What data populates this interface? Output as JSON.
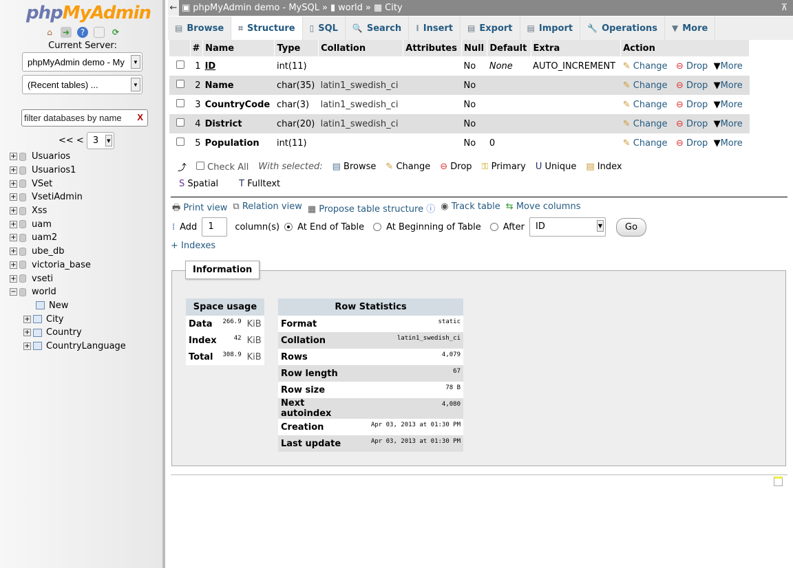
{
  "nav": {
    "logo_php": "php",
    "logo_my": "MyAdmin",
    "current_server_label": "Current Server:",
    "server_select": "phpMyAdmin demo - My",
    "recent_tables": "(Recent tables) ...",
    "filter_placeholder": "filter databases by name",
    "pager_prev": "<< <",
    "page": "3",
    "databases": [
      "Usuarios",
      "Usuarios1",
      "VSet",
      "VsetiAdmin",
      "Xss",
      "uam",
      "uam2",
      "ube_db",
      "victoria_base",
      "vseti",
      "world"
    ],
    "world_children": [
      "New",
      "City",
      "Country",
      "CountryLanguage"
    ]
  },
  "breadcrumb": {
    "server": "phpMyAdmin demo - MySQL",
    "sep": "»",
    "db": "world",
    "table": "City"
  },
  "tabs": [
    {
      "label": "Browse",
      "icon": "▤"
    },
    {
      "label": "Structure",
      "icon": "⌗"
    },
    {
      "label": "SQL",
      "icon": "▯"
    },
    {
      "label": "Search",
      "icon": "🔍"
    },
    {
      "label": "Insert",
      "icon": "⁞"
    },
    {
      "label": "Export",
      "icon": "▤"
    },
    {
      "label": "Import",
      "icon": "▤"
    },
    {
      "label": "Operations",
      "icon": "🔧"
    },
    {
      "label": "More",
      "icon": "▼"
    }
  ],
  "columns_header": [
    "#",
    "Name",
    "Type",
    "Collation",
    "Attributes",
    "Null",
    "Default",
    "Extra",
    "Action"
  ],
  "columns": [
    {
      "n": "1",
      "name": "ID",
      "type": "int(11)",
      "collation": "",
      "attributes": "",
      "null": "No",
      "default": "None",
      "extra": "AUTO_INCREMENT"
    },
    {
      "n": "2",
      "name": "Name",
      "type": "char(35)",
      "collation": "latin1_swedish_ci",
      "attributes": "",
      "null": "No",
      "default": "",
      "extra": ""
    },
    {
      "n": "3",
      "name": "CountryCode",
      "type": "char(3)",
      "collation": "latin1_swedish_ci",
      "attributes": "",
      "null": "No",
      "default": "",
      "extra": ""
    },
    {
      "n": "4",
      "name": "District",
      "type": "char(20)",
      "collation": "latin1_swedish_ci",
      "attributes": "",
      "null": "No",
      "default": "",
      "extra": ""
    },
    {
      "n": "5",
      "name": "Population",
      "type": "int(11)",
      "collation": "",
      "attributes": "",
      "null": "No",
      "default": "0",
      "extra": ""
    }
  ],
  "row_actions": {
    "change": "Change",
    "drop": "Drop",
    "more": "More"
  },
  "with_selected": {
    "check_all": "Check All",
    "label": "With selected:",
    "browse": "Browse",
    "change": "Change",
    "drop": "Drop",
    "primary": "Primary",
    "unique": "Unique",
    "index": "Index",
    "spatial": "Spatial",
    "fulltext": "Fulltext"
  },
  "links": {
    "print": "Print view",
    "relation": "Relation view",
    "propose": "Propose table structure",
    "track": "Track table",
    "move": "Move columns"
  },
  "add": {
    "label": "Add",
    "count": "1",
    "columns": "column(s)",
    "end": "At End of Table",
    "begin": "At Beginning of Table",
    "after": "After",
    "after_col": "ID",
    "go": "Go",
    "indexes": "+ Indexes"
  },
  "info": {
    "legend": "Information",
    "space": {
      "title": "Space usage",
      "rows": [
        [
          "Data",
          "266.9",
          "KiB"
        ],
        [
          "Index",
          "42",
          "KiB"
        ],
        [
          "Total",
          "308.9",
          "KiB"
        ]
      ]
    },
    "stats": {
      "title": "Row Statistics",
      "rows": [
        [
          "Format",
          "static"
        ],
        [
          "Collation",
          "latin1_swedish_ci"
        ],
        [
          "Rows",
          "4,079"
        ],
        [
          "Row length",
          "67"
        ],
        [
          "Row size",
          "78 B"
        ],
        [
          "Next autoindex",
          "4,080"
        ],
        [
          "Creation",
          "Apr 03, 2013 at 01:30 PM"
        ],
        [
          "Last update",
          "Apr 03, 2013 at 01:30 PM"
        ]
      ]
    }
  }
}
